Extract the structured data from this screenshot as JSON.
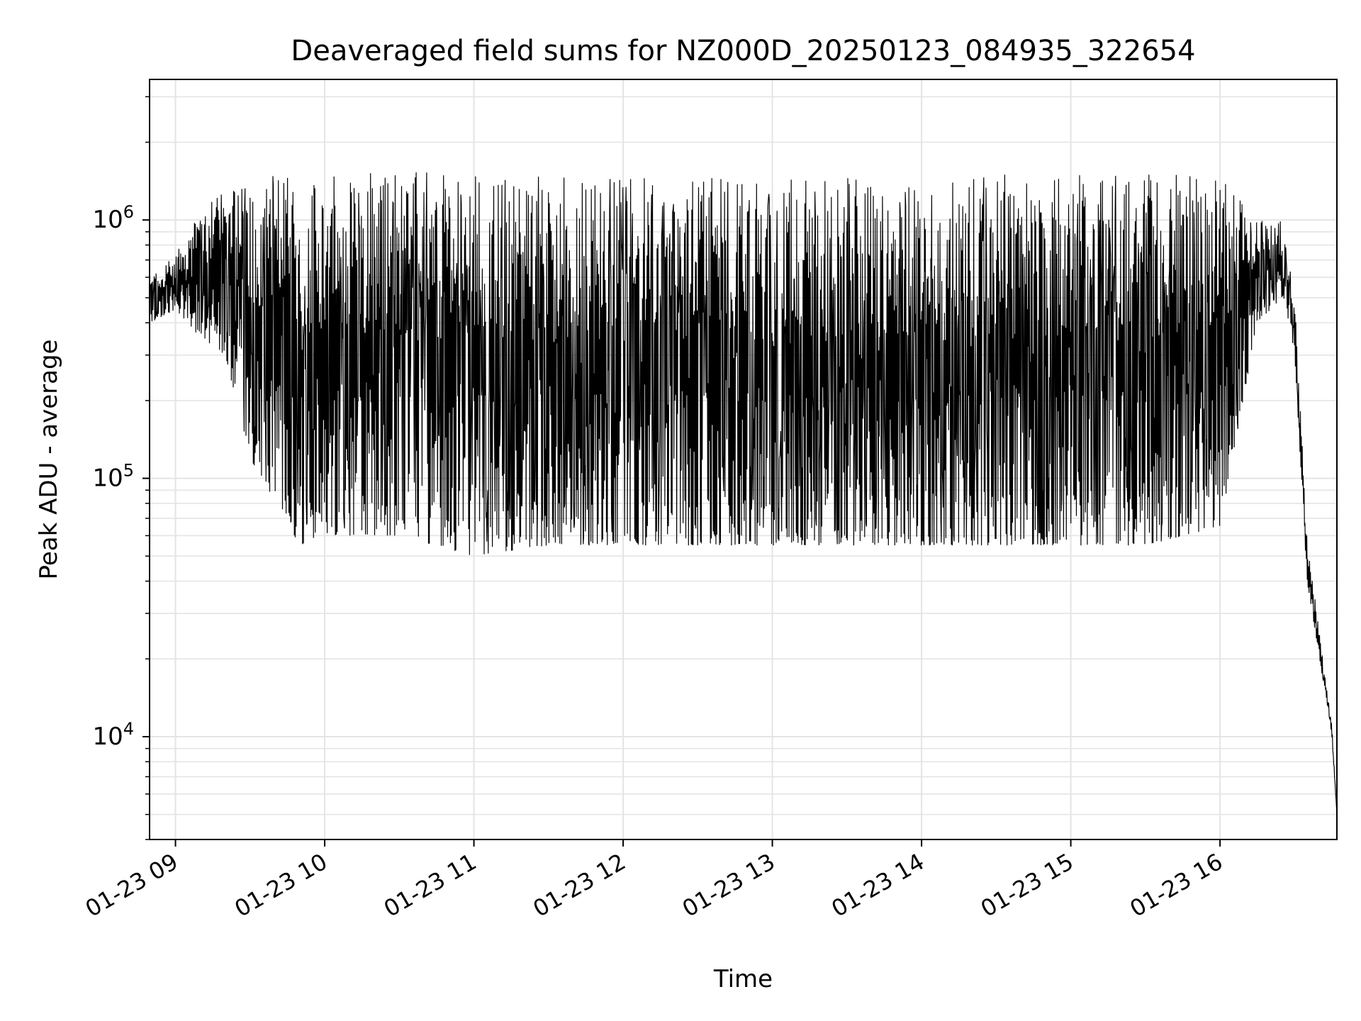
{
  "chart_data": {
    "type": "line",
    "title": "Deaveraged field sums for NZ000D_20250123_084935_322654",
    "xlabel": "Time",
    "ylabel": "Peak ADU - average",
    "y_scale": "log",
    "ylim": [
      4000,
      3500000
    ],
    "xlim": [
      "2025-01-23 08:49:35",
      "2025-01-23 16:47:00"
    ],
    "grid": true,
    "line_color": "#000000",
    "x_tick_labels": [
      "01-23 09",
      "01-23 10",
      "01-23 11",
      "01-23 12",
      "01-23 13",
      "01-23 14",
      "01-23 15",
      "01-23 16"
    ],
    "y_tick_labels": [
      {
        "base": "10",
        "exp": "4"
      },
      {
        "base": "10",
        "exp": "5"
      },
      {
        "base": "10",
        "exp": "6"
      }
    ],
    "series": [
      {
        "x": [
          "2025-01-23 08:50",
          "2025-01-23 09:00",
          "2025-01-23 09:10",
          "2025-01-23 09:20",
          "2025-01-23 09:30",
          "2025-01-23 09:40",
          "2025-01-23 09:50",
          "2025-01-23 10:00",
          "2025-01-23 10:15",
          "2025-01-23 10:30",
          "2025-01-23 11:00",
          "2025-01-23 11:30",
          "2025-01-23 12:00",
          "2025-01-23 12:30",
          "2025-01-23 13:00",
          "2025-01-23 13:30",
          "2025-01-23 14:00",
          "2025-01-23 14:30",
          "2025-01-23 15:00",
          "2025-01-23 15:30",
          "2025-01-23 16:00",
          "2025-01-23 16:15",
          "2025-01-23 16:25",
          "2025-01-23 16:30",
          "2025-01-23 16:35",
          "2025-01-23 16:40",
          "2025-01-23 16:45",
          "2025-01-23 16:47"
        ],
        "y_upper": [
          600000,
          750000,
          1100000,
          1300000,
          1500000,
          1500000,
          1550000,
          1550000,
          1600000,
          1550000,
          1500000,
          1500000,
          1500000,
          1500000,
          1500000,
          1500000,
          1500000,
          1500000,
          1500000,
          1500000,
          1500000,
          1000000,
          1000000,
          500000,
          60000,
          25000,
          11000,
          5000
        ],
        "y_lower": [
          400000,
          450000,
          350000,
          300000,
          120000,
          80000,
          55000,
          60000,
          60000,
          60000,
          50000,
          55000,
          55000,
          55000,
          55000,
          55000,
          55000,
          55000,
          55000,
          55000,
          65000,
          400000,
          500000,
          300000,
          40000,
          20000,
          10000,
          5000
        ]
      }
    ]
  }
}
